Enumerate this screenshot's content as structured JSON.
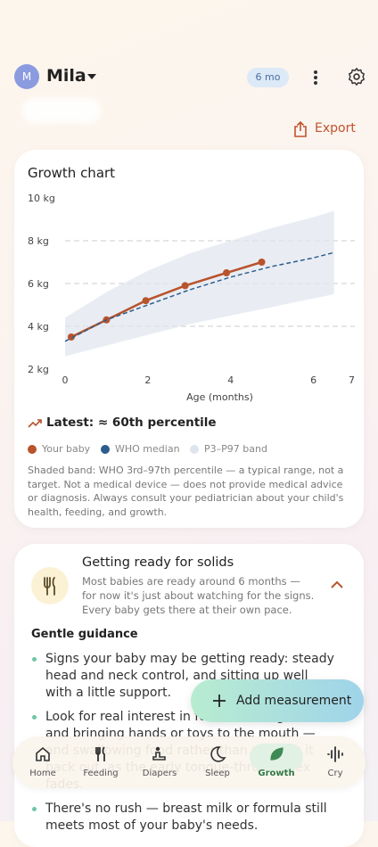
{
  "header": {
    "avatar": "M",
    "name": "Mila",
    "age_badge": "6 mo"
  },
  "export": "Export",
  "chart_card": {
    "title": "Growth chart",
    "latest": "Latest: ≈ 60th percentile",
    "disclaimer": "Shaded band: WHO 3rd–97th percentile — a typical range, not a target. Not a medical device — does not provide medical advice or diagnosis. Always consult your pediatrician about your child's health, feeding, and growth."
  },
  "chart_data": {
    "type": "line",
    "x_label": "Age (months)",
    "xlim": [
      0,
      7
    ],
    "xticks": [
      0,
      2,
      4,
      6,
      7
    ],
    "ylim": [
      2,
      10
    ],
    "yticks": [
      {
        "value": 2,
        "label": "2 kg"
      },
      {
        "value": 4,
        "label": "4 kg"
      },
      {
        "value": 6,
        "label": "6 kg"
      },
      {
        "value": 8,
        "label": "8 kg"
      },
      {
        "value": 10,
        "label": "10 kg"
      }
    ],
    "grid": true,
    "series": [
      {
        "name": "Your baby",
        "color": "#b8532c",
        "x": [
          0.15,
          1,
          1.95,
          2.9,
          3.9,
          4.75
        ],
        "values": [
          3.5,
          4.3,
          5.2,
          5.9,
          6.5,
          7.0
        ]
      },
      {
        "name": "WHO median",
        "color": "#2d5d8e",
        "dashed": true,
        "x": [
          0,
          1,
          2,
          3,
          4,
          5,
          6,
          6.5
        ],
        "values": [
          3.3,
          4.3,
          5.0,
          5.7,
          6.3,
          6.8,
          7.2,
          7.45
        ]
      },
      {
        "name": "P3–P97 band",
        "color": "#dfe5ee",
        "x": [
          0,
          1,
          2,
          3,
          4,
          5,
          6,
          6.5
        ],
        "upper": [
          4.4,
          5.6,
          6.6,
          7.4,
          8.0,
          8.6,
          9.1,
          9.4
        ],
        "lower": [
          2.6,
          3.1,
          3.6,
          4.1,
          4.5,
          4.9,
          5.3,
          5.5
        ]
      }
    ]
  },
  "solids": {
    "title": "Getting ready for solids",
    "text": "Most babies are ready around 6 months — for now it's just about watching for the signs. Every baby gets there at their own pace.",
    "guidance_title": "Gentle guidance",
    "bullets": [
      "Signs your baby may be getting ready: steady head and neck control, and sitting up well with a little support.",
      "Look for real interest in food, reaching for it, and bringing hands or toys to the mouth — and swallowing food rather than pushing it back out, as the early tongue-thrust reflex fades.",
      "There's no rush — breast milk or formula still meets most of your baby's needs."
    ]
  },
  "add_button": "Add measurement",
  "nav": [
    "Home",
    "Feeding",
    "Diapers",
    "Sleep",
    "Growth",
    "Cry"
  ]
}
